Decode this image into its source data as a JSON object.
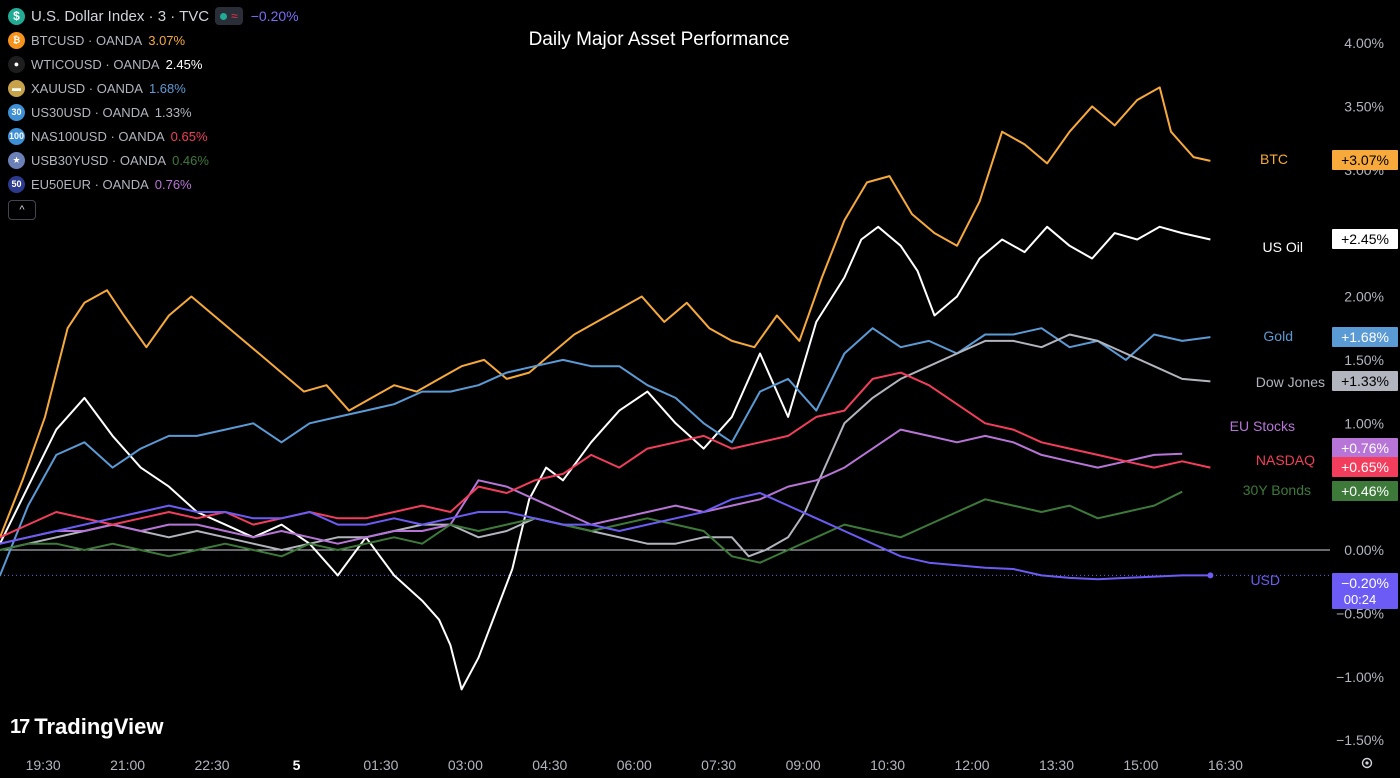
{
  "header": {
    "main_symbol": "U.S. Dollar Index · 3 · TVC",
    "main_change": "−0.20%",
    "main_icon": "dollar-icon",
    "status_wave": "≈",
    "collapse_icon": "^"
  },
  "legend": [
    {
      "name": "BTCUSD · OANDA",
      "value": "3.07%",
      "color": "#f7a93b",
      "icon_text": "₿",
      "icon_bg": "#f7931a"
    },
    {
      "name": "WTICOUSD · OANDA",
      "value": "2.45%",
      "color": "#ffffff",
      "icon_text": "●",
      "icon_bg": "#1e1e1e"
    },
    {
      "name": "XAUUSD · OANDA",
      "value": "1.68%",
      "color": "#5b9bd5",
      "icon_text": "▬",
      "icon_bg": "#c8a24a"
    },
    {
      "name": "US30USD · OANDA",
      "value": "1.33%",
      "color": "#b2b5be",
      "icon_text": "30",
      "icon_bg": "#3d8fd6"
    },
    {
      "name": "NAS100USD · OANDA",
      "value": "0.65%",
      "color": "#f23e5c",
      "icon_text": "100",
      "icon_bg": "#3d8fd6"
    },
    {
      "name": "USB30YUSD · OANDA",
      "value": "0.46%",
      "color": "#3d7a3a",
      "icon_text": "★",
      "icon_bg": "#6b7fb8"
    },
    {
      "name": "EU50EUR · OANDA",
      "value": "0.76%",
      "color": "#b875d8",
      "icon_text": "50",
      "icon_bg": "#2b3a8f"
    }
  ],
  "branding": {
    "logo_text": "TradingView",
    "logo_mark": "17"
  },
  "chart_data": {
    "type": "line",
    "title": "Daily Major Asset Performance",
    "xlabel": "",
    "ylabel": "",
    "x_ticks": [
      "19:30",
      "21:00",
      "22:30",
      "5",
      "01:30",
      "03:00",
      "04:30",
      "06:00",
      "07:30",
      "09:00",
      "10:30",
      "12:00",
      "13:30",
      "15:00",
      "16:30"
    ],
    "x_range": [
      0,
      27
    ],
    "x_tick_positions": [
      0.5,
      2,
      3.5,
      5,
      6.5,
      8,
      9.5,
      11,
      12.5,
      14,
      15.5,
      17,
      18.5,
      20,
      21.5
    ],
    "y_ticks": [
      "4.00%",
      "3.50%",
      "3.00%",
      "2.00%",
      "1.50%",
      "1.00%",
      "0.00%",
      "−0.50%",
      "−1.00%",
      "−1.50%"
    ],
    "y_tick_values": [
      4.0,
      3.5,
      3.0,
      2.0,
      1.5,
      1.0,
      0.0,
      -0.5,
      -1.0,
      -1.5
    ],
    "ylim": [
      -1.55,
      4.15
    ],
    "zero_line": 0.0,
    "series": [
      {
        "name": "BTC",
        "label": "BTC",
        "end_value": "+3.07%",
        "color": "#f7a93b",
        "x": [
          -0.2,
          0,
          0.4,
          0.8,
          1.2,
          1.5,
          1.9,
          2.2,
          2.6,
          3.0,
          3.4,
          3.8,
          4.2,
          4.6,
          5.0,
          5.4,
          5.8,
          6.2,
          6.6,
          7.0,
          7.4,
          7.8,
          8.2,
          8.6,
          9.0,
          9.4,
          9.8,
          10.2,
          10.6,
          11.0,
          11.4,
          11.8,
          12.2,
          12.6,
          13.0,
          13.4,
          13.8,
          14.2,
          14.6,
          15.0,
          15.4,
          15.8,
          16.2,
          16.6,
          17.0,
          17.4,
          17.8,
          18.2,
          18.6,
          19.0,
          19.4,
          19.8,
          20.2,
          20.6,
          20.8,
          21.0,
          21.2,
          21.5
        ],
        "y": [
          0.05,
          0.1,
          0.55,
          1.05,
          1.75,
          1.95,
          2.05,
          1.85,
          1.6,
          1.85,
          2.0,
          1.85,
          1.7,
          1.55,
          1.4,
          1.25,
          1.3,
          1.1,
          1.2,
          1.3,
          1.25,
          1.35,
          1.45,
          1.5,
          1.35,
          1.4,
          1.55,
          1.7,
          1.8,
          1.9,
          2.0,
          1.8,
          1.95,
          1.75,
          1.65,
          1.6,
          1.85,
          1.65,
          2.15,
          2.6,
          2.9,
          2.95,
          2.65,
          2.5,
          2.4,
          2.75,
          3.3,
          3.2,
          3.05,
          3.3,
          3.5,
          3.35,
          3.55,
          3.65,
          3.3,
          3.2,
          3.1,
          3.07
        ]
      },
      {
        "name": "US Oil",
        "label": "US Oil",
        "end_value": "+2.45%",
        "color": "#ffffff",
        "x": [
          -0.2,
          0,
          0.5,
          1.0,
          1.5,
          2.0,
          2.5,
          3.0,
          3.5,
          4.0,
          4.5,
          5.0,
          5.5,
          6.0,
          6.5,
          7.0,
          7.5,
          7.8,
          8.0,
          8.2,
          8.5,
          8.8,
          9.1,
          9.4,
          9.7,
          10.0,
          10.5,
          11.0,
          11.5,
          12.0,
          12.5,
          13.0,
          13.5,
          14.0,
          14.5,
          15.0,
          15.3,
          15.6,
          16.0,
          16.3,
          16.6,
          17.0,
          17.4,
          17.8,
          18.2,
          18.6,
          19.0,
          19.4,
          19.8,
          20.2,
          20.6,
          21.0,
          21.5
        ],
        "y": [
          0.15,
          0.05,
          0.5,
          0.95,
          1.2,
          0.9,
          0.65,
          0.5,
          0.3,
          0.2,
          0.1,
          0.2,
          0.05,
          -0.2,
          0.1,
          -0.2,
          -0.4,
          -0.55,
          -0.75,
          -1.1,
          -0.85,
          -0.5,
          -0.15,
          0.4,
          0.65,
          0.55,
          0.85,
          1.1,
          1.25,
          1.0,
          0.8,
          1.05,
          1.55,
          1.05,
          1.8,
          2.15,
          2.45,
          2.55,
          2.4,
          2.2,
          1.85,
          2.0,
          2.3,
          2.45,
          2.35,
          2.55,
          2.4,
          2.3,
          2.5,
          2.45,
          2.55,
          2.5,
          2.45
        ]
      },
      {
        "name": "Gold",
        "label": "Gold",
        "end_value": "+1.68%",
        "color": "#5b9bd5",
        "x": [
          -0.2,
          0,
          0.5,
          1.0,
          1.5,
          2.0,
          2.5,
          3.0,
          3.5,
          4.0,
          4.5,
          5.0,
          5.5,
          6.0,
          6.5,
          7.0,
          7.5,
          8.0,
          8.5,
          9.0,
          9.5,
          10.0,
          10.5,
          11.0,
          11.5,
          12.0,
          12.5,
          13.0,
          13.5,
          14.0,
          14.5,
          15.0,
          15.5,
          16.0,
          16.5,
          17.0,
          17.5,
          18.0,
          18.5,
          19.0,
          19.5,
          20.0,
          20.5,
          21.0,
          21.5
        ],
        "y": [
          -0.05,
          -0.2,
          0.35,
          0.75,
          0.85,
          0.65,
          0.8,
          0.9,
          0.9,
          0.95,
          1.0,
          0.85,
          1.0,
          1.05,
          1.1,
          1.15,
          1.25,
          1.25,
          1.3,
          1.4,
          1.45,
          1.5,
          1.45,
          1.45,
          1.3,
          1.2,
          1.0,
          0.85,
          1.25,
          1.35,
          1.1,
          1.55,
          1.75,
          1.6,
          1.65,
          1.55,
          1.7,
          1.7,
          1.75,
          1.6,
          1.65,
          1.5,
          1.7,
          1.65,
          1.68
        ]
      },
      {
        "name": "Dow Jones",
        "label": "Dow Jones",
        "end_value": "+1.33%",
        "color": "#b2b5be",
        "x": [
          -0.2,
          0,
          0.5,
          1.0,
          1.5,
          2.0,
          2.5,
          3.0,
          3.5,
          4.0,
          4.5,
          5.0,
          5.5,
          6.0,
          6.5,
          7.0,
          7.5,
          8.0,
          8.5,
          9.0,
          9.5,
          10.0,
          10.5,
          11.0,
          11.5,
          12.0,
          12.5,
          13.0,
          13.3,
          13.6,
          14.0,
          14.3,
          14.6,
          15.0,
          15.5,
          16.0,
          16.5,
          17.0,
          17.5,
          18.0,
          18.5,
          19.0,
          19.5,
          20.0,
          20.5,
          21.0,
          21.5
        ],
        "y": [
          0.0,
          0.0,
          0.05,
          0.1,
          0.15,
          0.2,
          0.15,
          0.1,
          0.15,
          0.1,
          0.05,
          0.0,
          0.05,
          0.1,
          0.1,
          0.15,
          0.2,
          0.2,
          0.1,
          0.15,
          0.25,
          0.2,
          0.15,
          0.1,
          0.05,
          0.05,
          0.1,
          0.1,
          -0.05,
          0.0,
          0.1,
          0.3,
          0.6,
          1.0,
          1.2,
          1.35,
          1.45,
          1.55,
          1.65,
          1.65,
          1.6,
          1.7,
          1.65,
          1.55,
          1.45,
          1.35,
          1.33
        ]
      },
      {
        "name": "EU Stocks",
        "label": "EU Stocks",
        "end_value": "+0.76%",
        "color": "#b875d8",
        "x": [
          -0.2,
          0,
          0.5,
          1.0,
          1.5,
          2.0,
          2.5,
          3.0,
          3.5,
          4.0,
          4.5,
          5.0,
          5.5,
          6.0,
          6.5,
          7.0,
          7.5,
          8.0,
          8.5,
          9.0,
          9.5,
          10.0,
          10.5,
          11.0,
          11.5,
          12.0,
          12.5,
          13.0,
          13.5,
          14.0,
          14.5,
          15.0,
          15.5,
          16.0,
          16.5,
          17.0,
          17.5,
          18.0,
          18.5,
          19.0,
          19.5,
          20.0,
          20.5,
          21.0
        ],
        "y": [
          0.05,
          0.05,
          0.1,
          0.15,
          0.15,
          0.2,
          0.15,
          0.2,
          0.2,
          0.15,
          0.1,
          0.15,
          0.1,
          0.05,
          0.1,
          0.15,
          0.15,
          0.2,
          0.55,
          0.5,
          0.4,
          0.3,
          0.2,
          0.25,
          0.3,
          0.35,
          0.3,
          0.35,
          0.4,
          0.5,
          0.55,
          0.65,
          0.8,
          0.95,
          0.9,
          0.85,
          0.9,
          0.85,
          0.75,
          0.7,
          0.65,
          0.7,
          0.75,
          0.76
        ]
      },
      {
        "name": "NASDAQ",
        "label": "NASDAQ",
        "end_value": "+0.65%",
        "color": "#f23e5c",
        "x": [
          -0.2,
          0,
          0.5,
          1.0,
          1.5,
          2.0,
          2.5,
          3.0,
          3.5,
          4.0,
          4.5,
          5.0,
          5.5,
          6.0,
          6.5,
          7.0,
          7.5,
          8.0,
          8.5,
          9.0,
          9.5,
          10.0,
          10.5,
          11.0,
          11.5,
          12.0,
          12.5,
          13.0,
          13.5,
          14.0,
          14.5,
          15.0,
          15.5,
          16.0,
          16.5,
          17.0,
          17.5,
          18.0,
          18.5,
          19.0,
          19.5,
          20.0,
          20.5,
          21.0,
          21.5
        ],
        "y": [
          0.1,
          0.1,
          0.2,
          0.3,
          0.25,
          0.2,
          0.25,
          0.3,
          0.25,
          0.3,
          0.2,
          0.25,
          0.3,
          0.25,
          0.25,
          0.3,
          0.35,
          0.3,
          0.5,
          0.45,
          0.55,
          0.6,
          0.75,
          0.65,
          0.8,
          0.85,
          0.9,
          0.8,
          0.85,
          0.9,
          1.05,
          1.1,
          1.35,
          1.4,
          1.3,
          1.15,
          1.0,
          0.95,
          0.85,
          0.8,
          0.75,
          0.7,
          0.65,
          0.7,
          0.65
        ]
      },
      {
        "name": "30Y Bonds",
        "label": "30Y Bonds",
        "end_value": "+0.46%",
        "color": "#3d7a3a",
        "x": [
          -0.2,
          0,
          0.5,
          1.0,
          1.5,
          2.0,
          2.5,
          3.0,
          3.5,
          4.0,
          4.5,
          5.0,
          5.5,
          6.0,
          6.5,
          7.0,
          7.5,
          8.0,
          8.5,
          9.0,
          9.5,
          10.0,
          10.5,
          11.0,
          11.5,
          12.0,
          12.5,
          13.0,
          13.5,
          14.0,
          14.5,
          15.0,
          15.5,
          16.0,
          16.5,
          17.0,
          17.5,
          18.0,
          18.5,
          19.0,
          19.5,
          20.0,
          20.5,
          21.0
        ],
        "y": [
          0.0,
          0.0,
          0.05,
          0.05,
          0.0,
          0.05,
          0.0,
          -0.05,
          0.0,
          0.05,
          0.0,
          -0.05,
          0.05,
          0.0,
          0.05,
          0.1,
          0.05,
          0.2,
          0.15,
          0.2,
          0.25,
          0.2,
          0.15,
          0.2,
          0.25,
          0.2,
          0.15,
          -0.05,
          -0.1,
          0.0,
          0.1,
          0.2,
          0.15,
          0.1,
          0.2,
          0.3,
          0.4,
          0.35,
          0.3,
          0.35,
          0.25,
          0.3,
          0.35,
          0.46
        ]
      },
      {
        "name": "USD",
        "label": "USD",
        "end_value": "−0.20%",
        "end_time": "00:24",
        "color": "#6c5cf5",
        "x": [
          -0.2,
          0,
          0.5,
          1.0,
          1.5,
          2.0,
          2.5,
          3.0,
          3.5,
          4.0,
          4.5,
          5.0,
          5.5,
          6.0,
          6.5,
          7.0,
          7.5,
          8.0,
          8.5,
          9.0,
          9.5,
          10.0,
          10.5,
          11.0,
          11.5,
          12.0,
          12.5,
          13.0,
          13.5,
          14.0,
          14.5,
          15.0,
          15.5,
          16.0,
          16.5,
          17.0,
          17.5,
          18.0,
          18.5,
          19.0,
          19.5,
          20.0,
          20.5,
          21.0,
          21.5
        ],
        "y": [
          0.05,
          0.05,
          0.1,
          0.15,
          0.2,
          0.25,
          0.3,
          0.35,
          0.3,
          0.3,
          0.25,
          0.25,
          0.3,
          0.2,
          0.2,
          0.25,
          0.2,
          0.25,
          0.3,
          0.3,
          0.25,
          0.2,
          0.2,
          0.15,
          0.2,
          0.25,
          0.3,
          0.4,
          0.45,
          0.35,
          0.25,
          0.15,
          0.05,
          -0.05,
          -0.1,
          -0.12,
          -0.14,
          -0.15,
          -0.2,
          -0.22,
          -0.23,
          -0.22,
          -0.21,
          -0.2,
          -0.2
        ]
      }
    ]
  },
  "current_line": {
    "value": -0.2,
    "color": "#6c5cf5"
  }
}
